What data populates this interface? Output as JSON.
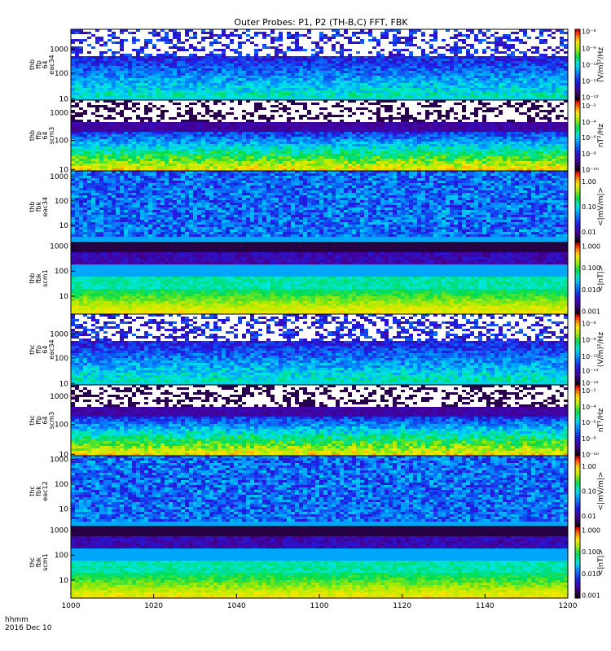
{
  "chart_data": {
    "type": "heatmap",
    "title": "Outer Probes: P1, P2 (TH-B,C) FFT, FBK",
    "x_corner_label": {
      "line1": "hhmm",
      "line2": "2016 Dec 10"
    },
    "x_tick_labels": [
      "1000",
      "1020",
      "1040",
      "1100",
      "1120",
      "1140",
      "1200"
    ],
    "panels": [
      {
        "id": "thb-ffp-eac34",
        "ylabel": [
          "thb",
          "ffp",
          "64",
          "eac34"
        ],
        "y_ticks": [
          "1000",
          "100",
          "10"
        ],
        "y_tick_fracs": [
          0.28,
          0.62,
          0.98
        ],
        "cb_label": "(V/m)²/Hz",
        "cb_labels": [
          "10⁻⁸",
          "10⁻⁹",
          "10⁻¹⁰",
          "10⁻¹¹",
          "10⁻¹²"
        ],
        "cb_fracs": [
          0.03,
          0.27,
          0.5,
          0.73,
          0.96
        ],
        "style": "e_ffp"
      },
      {
        "id": "thb-ffp-scm3",
        "ylabel": [
          "thb",
          "ffp",
          "64",
          "scm3"
        ],
        "y_ticks": [
          "1000",
          "100",
          "10"
        ],
        "y_tick_fracs": [
          0.18,
          0.57,
          0.98
        ],
        "cb_label": "nT²/Hz",
        "cb_labels": [
          "10⁻²",
          "10⁻⁴",
          "10⁻⁶",
          "10⁻⁸",
          "10⁻¹⁰"
        ],
        "cb_fracs": [
          0.08,
          0.31,
          0.53,
          0.76,
          0.98
        ],
        "style": "b_ffp"
      },
      {
        "id": "thb-fbk-eac34",
        "ylabel": [
          "thb",
          "fbk",
          "eac34"
        ],
        "y_ticks": [
          "1000",
          "100",
          "10"
        ],
        "y_tick_fracs": [
          0.08,
          0.42,
          0.76
        ],
        "cb_label": "<|mV/m|>",
        "cb_labels": [
          "1.00",
          "0.10",
          "0.01"
        ],
        "cb_fracs": [
          0.15,
          0.5,
          0.85
        ],
        "style": "e_fbk"
      },
      {
        "id": "thb-fbk-scm1",
        "ylabel": [
          "thb",
          "fbk",
          "scm1"
        ],
        "y_ticks": [
          "1000",
          "100",
          "10"
        ],
        "y_tick_fracs": [
          0.05,
          0.4,
          0.75
        ],
        "cb_label": "<|nT|>",
        "cb_labels": [
          "1.000",
          "0.100",
          "0.010",
          "0.001"
        ],
        "cb_fracs": [
          0.05,
          0.35,
          0.66,
          0.96
        ],
        "style": "b_fbk"
      },
      {
        "id": "thc-ffp-eac34",
        "ylabel": [
          "thc",
          "ffp",
          "64",
          "eac34"
        ],
        "y_ticks": [
          "1000",
          "100",
          "10"
        ],
        "y_tick_fracs": [
          0.28,
          0.62,
          0.98
        ],
        "cb_label": "(V/m)²/Hz",
        "cb_labels": [
          "10⁻⁸",
          "10⁻⁹",
          "10⁻¹⁰",
          "10⁻¹¹",
          "10⁻¹²"
        ],
        "cb_fracs": [
          0.13,
          0.36,
          0.6,
          0.8,
          0.97
        ],
        "style": "e_ffp"
      },
      {
        "id": "thc-ffp-scm3",
        "ylabel": [
          "thc",
          "ffp",
          "64",
          "scm3"
        ],
        "y_ticks": [
          "1000",
          "100",
          "10"
        ],
        "y_tick_fracs": [
          0.16,
          0.56,
          0.98
        ],
        "cb_label": "nT²/Hz",
        "cb_labels": [
          "10⁻²",
          "10⁻⁴",
          "10⁻⁶",
          "10⁻⁸",
          "10⁻¹⁰"
        ],
        "cb_fracs": [
          0.08,
          0.31,
          0.53,
          0.76,
          0.98
        ],
        "style": "b_ffp"
      },
      {
        "id": "thc-fbk-eac12",
        "ylabel": [
          "thc",
          "fbk",
          "eac12"
        ],
        "y_ticks": [
          "1000",
          "100",
          "10"
        ],
        "y_tick_fracs": [
          0.05,
          0.4,
          0.75
        ],
        "cb_label": "<|mV/m|>",
        "cb_labels": [
          "1.00",
          "0.10",
          "0.01"
        ],
        "cb_fracs": [
          0.15,
          0.5,
          0.85
        ],
        "style": "e_fbk"
      },
      {
        "id": "thc-fbk-scm1",
        "ylabel": [
          "thc",
          "fbk",
          "scm1"
        ],
        "y_ticks": [
          "1000",
          "100",
          "10"
        ],
        "y_tick_fracs": [
          0.05,
          0.4,
          0.75
        ],
        "cb_label": "<|nT|>",
        "cb_labels": [
          "1.000",
          "0.100",
          "0.010",
          "0.001"
        ],
        "cb_fracs": [
          0.05,
          0.35,
          0.66,
          0.96
        ],
        "style": "b_fbk"
      }
    ]
  }
}
